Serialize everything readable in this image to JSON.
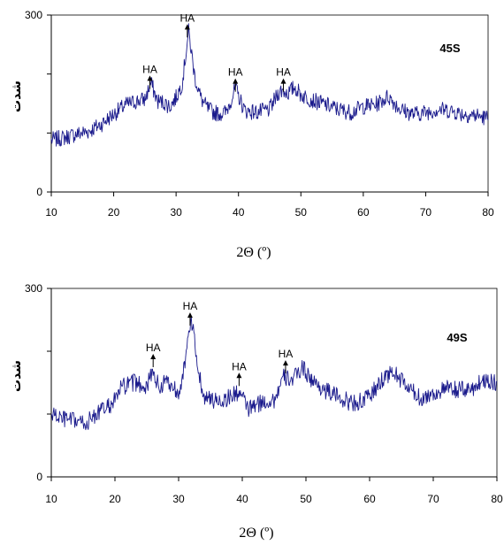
{
  "chart_data": [
    {
      "type": "line",
      "sample_label": "45S",
      "xlabel": "2Θ (º)",
      "ylabel": "شدت",
      "xlim": [
        10,
        80
      ],
      "ylim": [
        0,
        300
      ],
      "xticks": [
        "10",
        "20",
        "30",
        "40",
        "50",
        "60",
        "70",
        "80"
      ],
      "yticks": [
        "0",
        "",
        "",
        "300"
      ],
      "ytick_values": [
        0,
        100,
        200,
        300
      ],
      "grid": false,
      "line_color": "#1a1a8c",
      "x": [
        10,
        12,
        14,
        16,
        18,
        20,
        22,
        24,
        25,
        26,
        27,
        28,
        29,
        30,
        31,
        32,
        33,
        34,
        35,
        36,
        37,
        38,
        39.5,
        41,
        43,
        45,
        46.5,
        47,
        48,
        49,
        50,
        52,
        54,
        56,
        58,
        60,
        62,
        64,
        66,
        68,
        70,
        72,
        74,
        76,
        78,
        80
      ],
      "y": [
        88,
        92,
        98,
        103,
        115,
        132,
        148,
        155,
        157,
        185,
        154,
        152,
        145,
        160,
        185,
        272,
        195,
        158,
        142,
        135,
        133,
        135,
        175,
        138,
        135,
        140,
        170,
        172,
        168,
        178,
        165,
        155,
        148,
        140,
        135,
        145,
        148,
        162,
        140,
        132,
        135,
        140,
        138,
        132,
        130,
        125
      ],
      "annotations": [
        {
          "label": "HA",
          "x": 25.8,
          "y": 202
        },
        {
          "label": "HA",
          "x": 31.8,
          "y": 289
        },
        {
          "label": "HA",
          "x": 39.5,
          "y": 197
        },
        {
          "label": "HA",
          "x": 47.2,
          "y": 197
        }
      ]
    },
    {
      "type": "line",
      "sample_label": "49S",
      "xlabel": "2Θ (º)",
      "ylabel": "شدت",
      "xlim": [
        10,
        80
      ],
      "ylim": [
        0,
        300
      ],
      "xticks": [
        "10",
        "20",
        "30",
        "40",
        "50",
        "60",
        "70",
        "80"
      ],
      "yticks": [
        "0",
        "",
        "",
        "300"
      ],
      "ytick_values": [
        0,
        100,
        200,
        300
      ],
      "grid": false,
      "line_color": "#1a1a8c",
      "x": [
        10,
        12,
        14,
        15.5,
        17,
        19,
        20,
        21,
        23,
        25,
        26,
        27,
        28,
        29,
        30,
        31,
        32,
        33,
        34,
        35,
        37,
        39.5,
        41,
        43,
        45,
        46.5,
        48,
        49.5,
        51,
        53,
        55,
        57,
        59,
        61,
        62.5,
        64,
        66,
        68,
        70,
        72,
        74,
        76,
        78,
        80
      ],
      "y": [
        100,
        92,
        88,
        85,
        100,
        112,
        122,
        142,
        150,
        145,
        168,
        140,
        155,
        145,
        135,
        180,
        252,
        175,
        128,
        122,
        122,
        135,
        108,
        118,
        122,
        158,
        155,
        175,
        152,
        138,
        128,
        118,
        120,
        140,
        162,
        165,
        142,
        125,
        132,
        140,
        138,
        140,
        155,
        150
      ],
      "annotations": [
        {
          "label": "HA",
          "x": 26,
          "y": 200
        },
        {
          "label": "HA",
          "x": 31.8,
          "y": 266
        },
        {
          "label": "HA",
          "x": 39.5,
          "y": 170
        },
        {
          "label": "HA",
          "x": 46.8,
          "y": 190
        }
      ]
    }
  ]
}
